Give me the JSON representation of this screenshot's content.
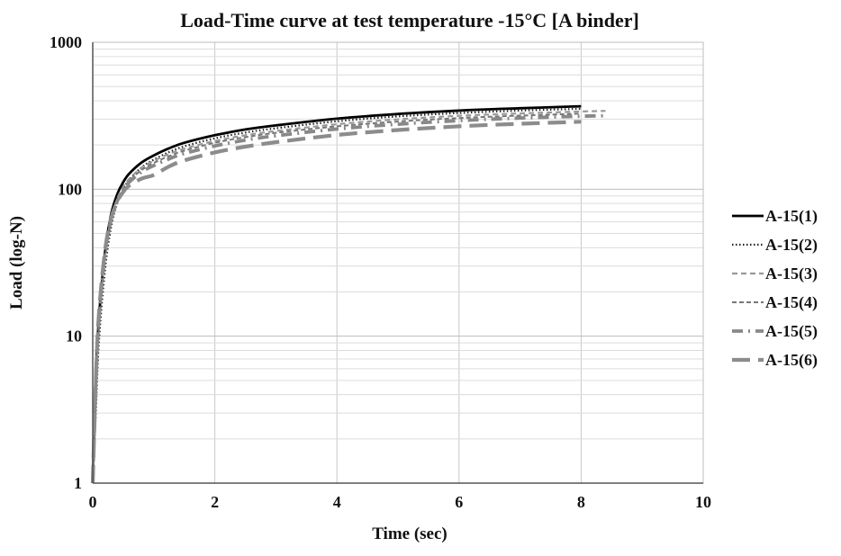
{
  "chart_data": {
    "type": "line",
    "title": "Load-Time curve at test temperature -15°C [A binder]",
    "xlabel": "Time (sec)",
    "ylabel": "Load (log-N)",
    "xlim": [
      0,
      10
    ],
    "ylim": [
      1,
      1000
    ],
    "yscale": "log",
    "x_ticks": [
      0,
      2,
      4,
      6,
      8,
      10
    ],
    "x_tick_labels": [
      "0",
      "2",
      "4",
      "6",
      "8",
      "10"
    ],
    "y_ticks": [
      1,
      10,
      100,
      1000
    ],
    "y_tick_labels": [
      "1",
      "10",
      "100",
      "1000"
    ],
    "grid": true,
    "legend_position": "right",
    "x": [
      0,
      0.05,
      0.1,
      0.2,
      0.3,
      0.4,
      0.5,
      0.6,
      0.8,
      1,
      1.25,
      1.5,
      2,
      2.5,
      3,
      4,
      5,
      6,
      7,
      8,
      8.4
    ],
    "series": [
      {
        "name": "A-15(1)",
        "color": "#000000",
        "dash": "solid",
        "end_x": 8.3,
        "values": [
          1,
          5,
          13,
          37,
          67,
          92,
          112,
          128,
          152,
          170,
          190,
          207,
          233,
          255,
          272,
          302,
          325,
          343,
          356,
          367,
          370
        ]
      },
      {
        "name": "A-15(2)",
        "color": "#222222",
        "dash": "dot",
        "end_x": 8.35,
        "values": [
          1,
          3,
          9,
          28,
          55,
          80,
          100,
          116,
          141,
          159,
          179,
          196,
          222,
          243,
          260,
          290,
          313,
          330,
          343,
          353,
          356
        ]
      },
      {
        "name": "A-15(3)",
        "color": "#999999",
        "dash": "dash",
        "end_x": 8.4,
        "values": [
          1,
          4,
          12,
          35,
          63,
          86,
          104,
          118,
          140,
          156,
          174,
          189,
          213,
          233,
          249,
          277,
          299,
          316,
          328,
          338,
          341
        ]
      },
      {
        "name": "A-15(4)",
        "color": "#777777",
        "dash": "dash-fine",
        "end_x": 8.3,
        "values": [
          1,
          4,
          11,
          33,
          60,
          82,
          100,
          114,
          135,
          151,
          168,
          183,
          207,
          226,
          242,
          268,
          289,
          305,
          317,
          327,
          330
        ]
      },
      {
        "name": "A-15(5)",
        "color": "#888888",
        "dash": "dash-dot",
        "end_x": 8.4,
        "values": [
          1,
          5,
          13,
          36,
          62,
          83,
          99,
          112,
          131,
          145,
          161,
          175,
          197,
          216,
          231,
          257,
          277,
          293,
          305,
          314,
          316
        ]
      },
      {
        "name": "A-15(6)",
        "color": "#8c8c8c",
        "dash": "long-dash",
        "end_x": 8.3,
        "values": [
          1,
          5,
          14,
          38,
          63,
          82,
          96,
          106,
          118,
          125,
          143,
          157,
          178,
          195,
          209,
          234,
          253,
          268,
          279,
          288,
          290
        ]
      }
    ]
  }
}
